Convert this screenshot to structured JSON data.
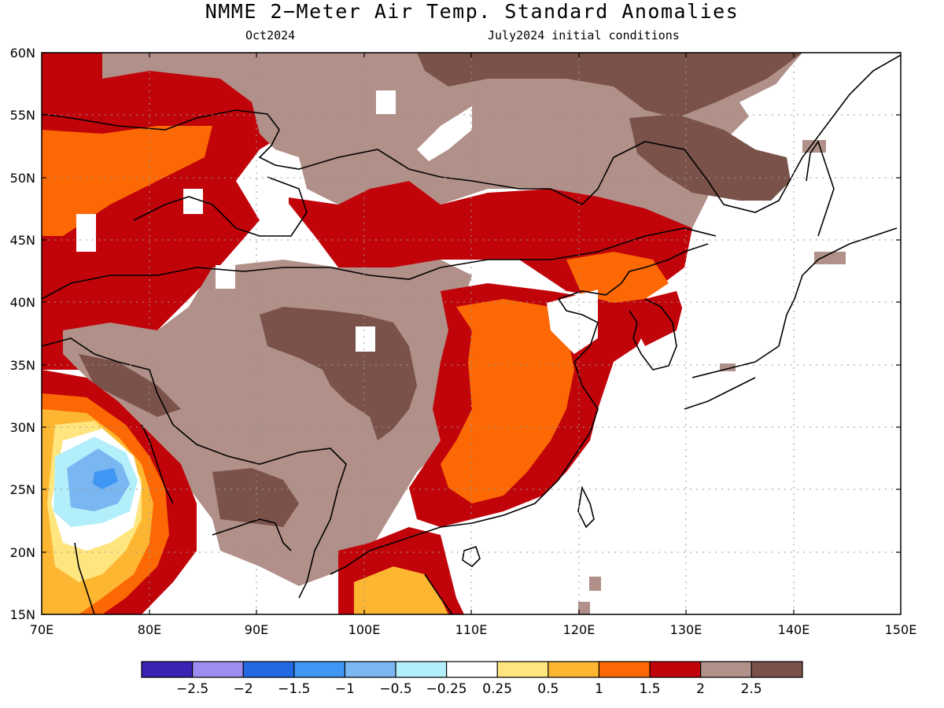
{
  "title": "NMME 2−Meter Air Temp. Standard Anomalies",
  "subtitle_left": "Oct2024",
  "subtitle_right": "July2024 initial conditions",
  "lat_labels": [
    "60N",
    "55N",
    "50N",
    "45N",
    "40N",
    "35N",
    "30N",
    "25N",
    "20N",
    "15N"
  ],
  "lon_labels": [
    "70E",
    "80E",
    "90E",
    "100E",
    "110E",
    "120E",
    "130E",
    "140E",
    "150E"
  ],
  "colorbar": {
    "colors": [
      "#3a22b2",
      "#9f8cf0",
      "#2369e1",
      "#3f96f3",
      "#79b6f2",
      "#b3effa",
      "#ffffff",
      "#fee57e",
      "#fdb631",
      "#fb6804",
      "#c1040a",
      "#b09088",
      "#7a5249"
    ],
    "labels": [
      "−2.5",
      "−2",
      "−1.5",
      "−1",
      "−0.5",
      "−0.25",
      "0.25",
      "0.5",
      "1",
      "1.5",
      "2",
      "2.5"
    ]
  },
  "colors": {
    "dark_red": "#c1040a",
    "orange": "#fb6804",
    "light_orange": "#fdb631",
    "yellow": "#fee57e",
    "tan": "#b09088",
    "dark_brown": "#7a5249",
    "light_blue": "#79b6f2",
    "pale_cyan": "#b3effa"
  }
}
